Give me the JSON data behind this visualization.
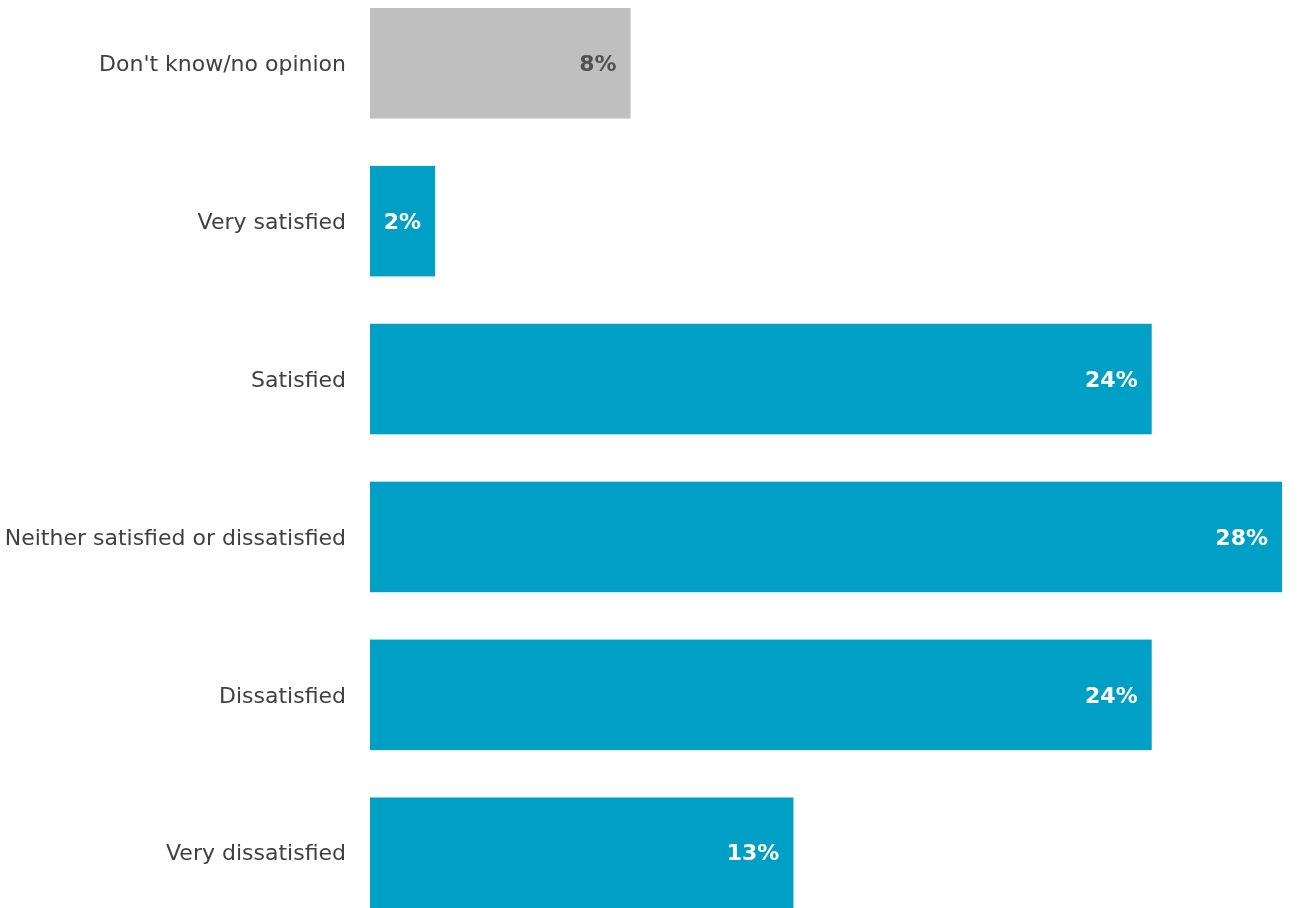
{
  "chart_data": {
    "type": "bar",
    "orientation": "horizontal",
    "categories": [
      "Don't know/no opinion",
      "Very satisfied",
      "Satisfied",
      "Neither satisfied or dissatisfied",
      "Dissatisfied",
      "Very dissatisfied"
    ],
    "values": [
      8,
      2,
      24,
      28,
      24,
      13
    ],
    "colors": [
      "#bfbfbf",
      "#00a0c6",
      "#00a0c6",
      "#00a0c6",
      "#00a0c6",
      "#00a0c6"
    ],
    "value_labels": [
      "8%",
      "2%",
      "24%",
      "28%",
      "24%",
      "13%"
    ]
  }
}
